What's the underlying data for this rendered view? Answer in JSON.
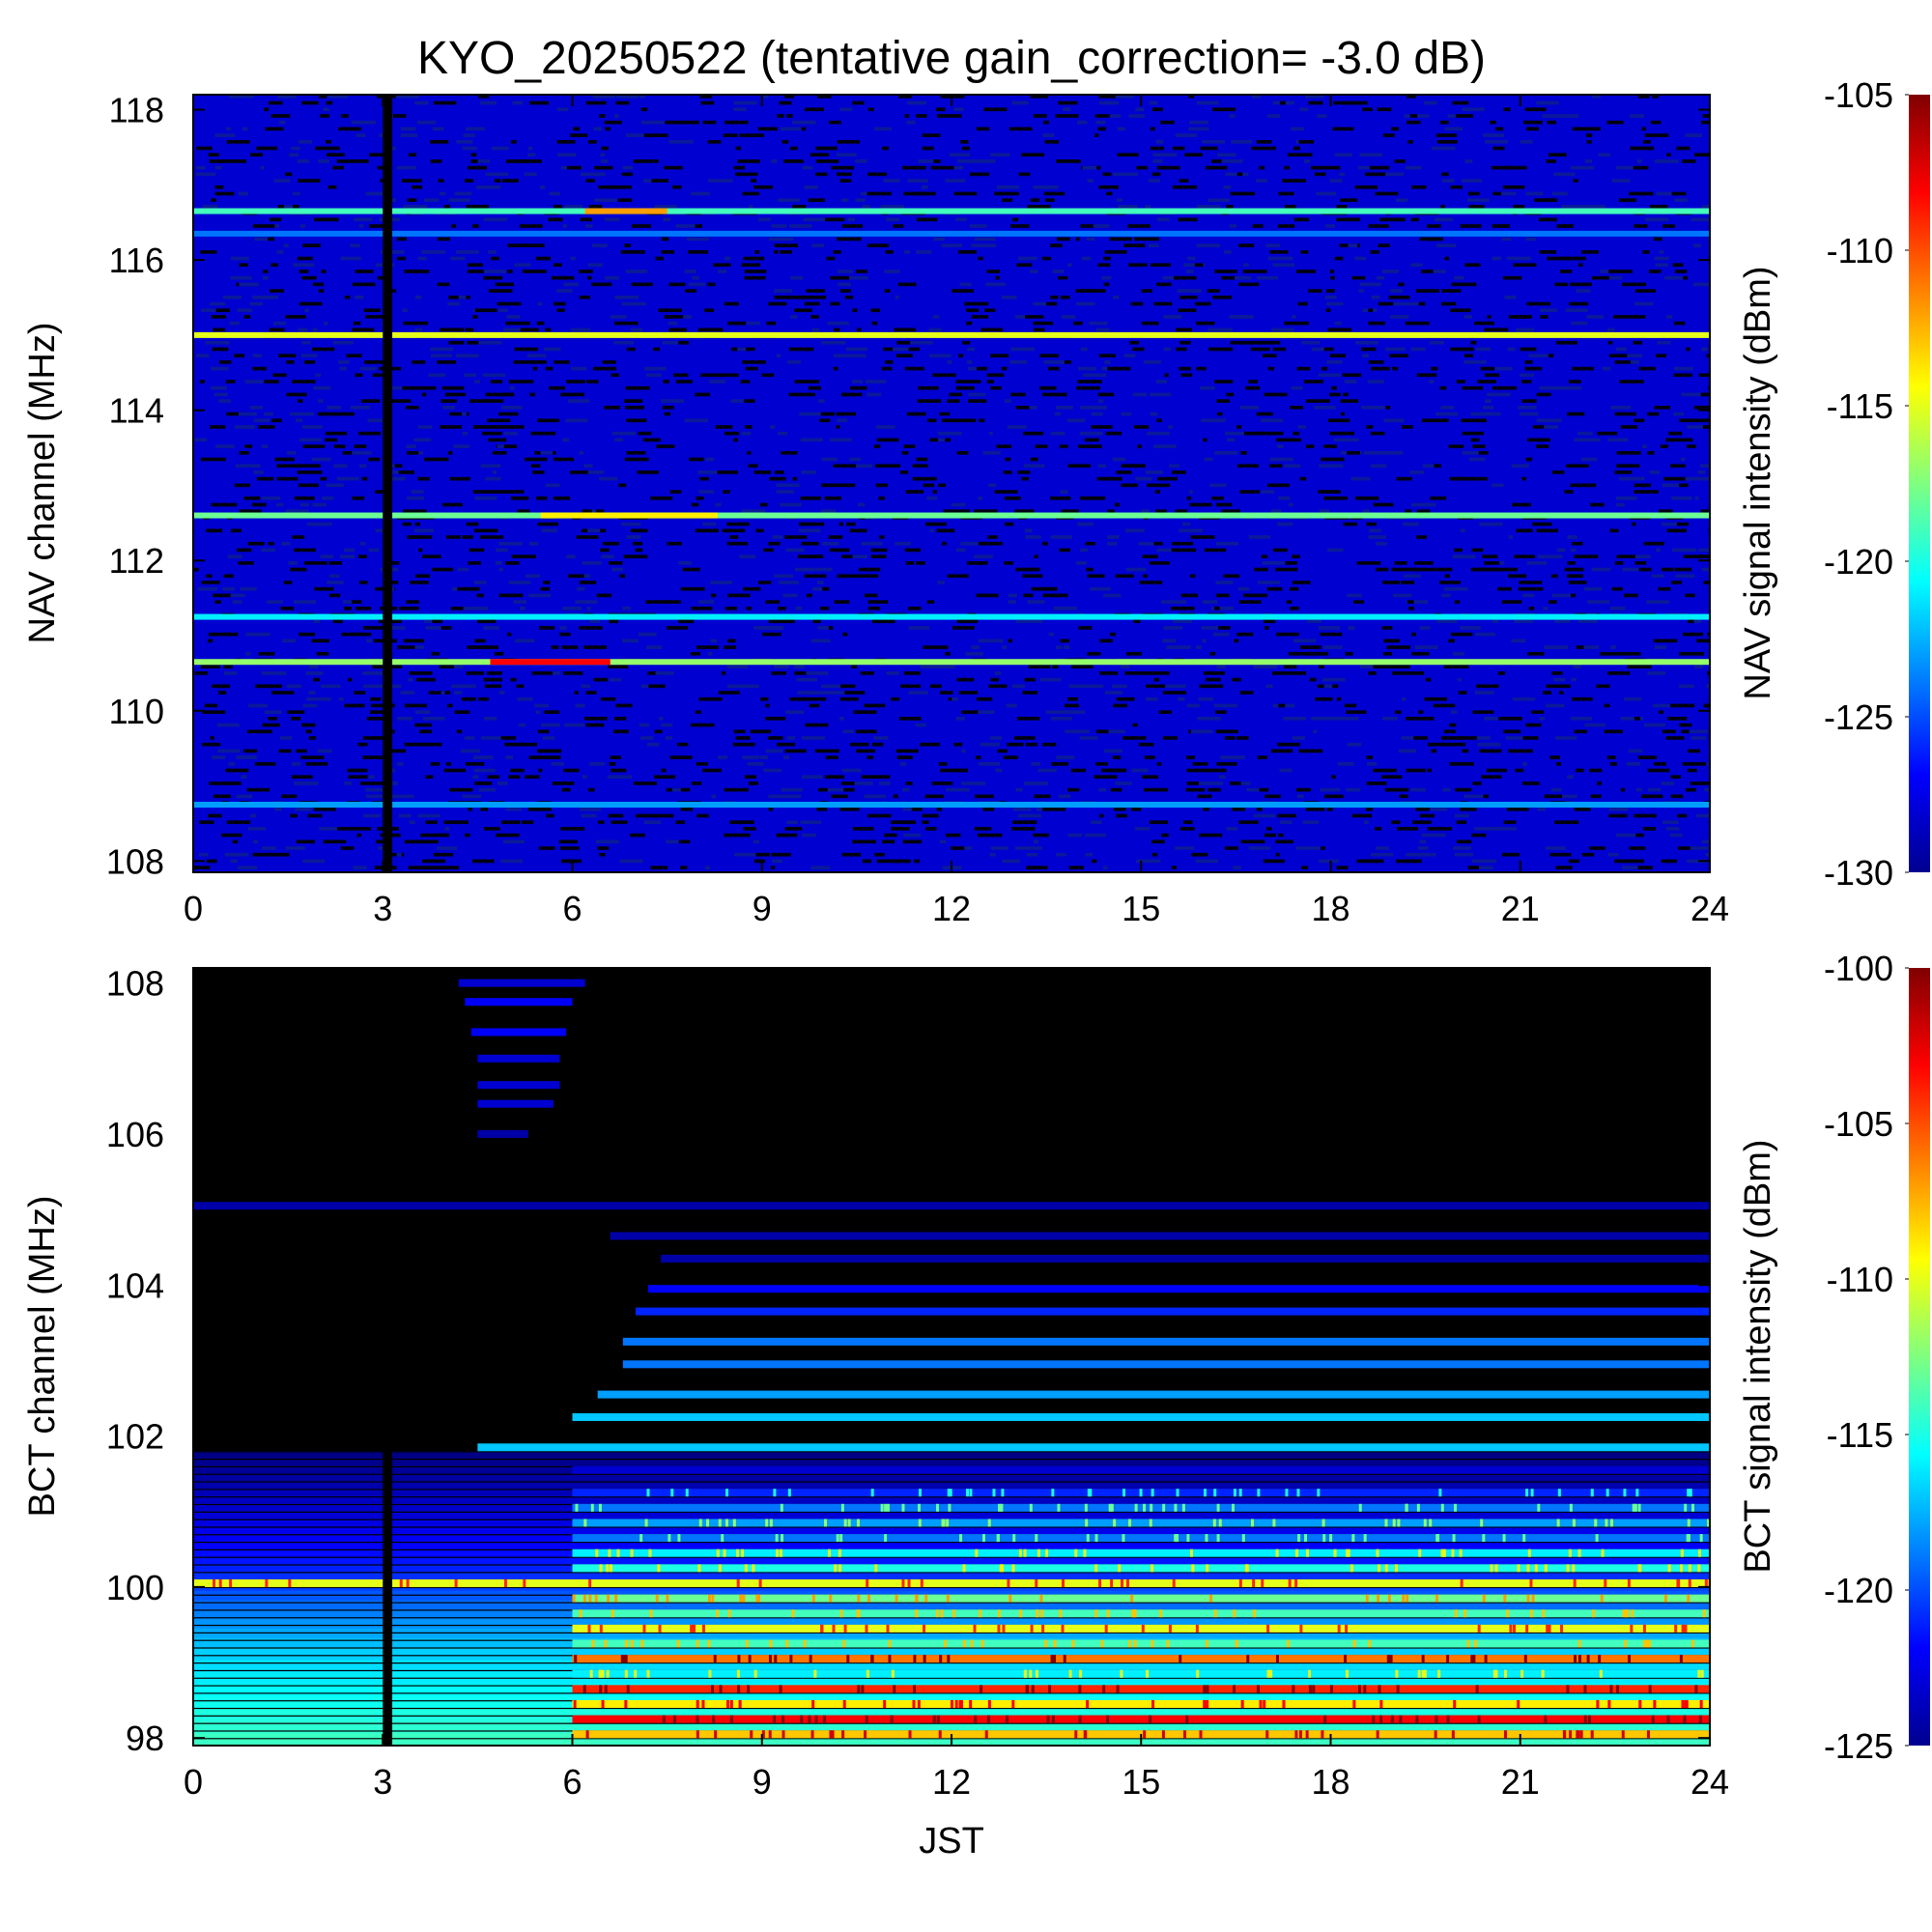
{
  "figure": {
    "title": "KYO_20250522 (tentative gain_correction= -3.0 dB)",
    "xlabel": "JST"
  },
  "chart_data": [
    {
      "type": "heatmap",
      "panel": "top",
      "xlabel": "",
      "ylabel": "NAV channel (MHz)",
      "colorbar_label": "NAV signal intensity (dBm)",
      "x_ticks": [
        "0",
        "3",
        "6",
        "9",
        "12",
        "15",
        "18",
        "21",
        "24"
      ],
      "y_ticks": [
        "108",
        "110",
        "112",
        "114",
        "116",
        "118"
      ],
      "colorbar_ticks": [
        "-130",
        "-125",
        "-120",
        "-115",
        "-110",
        "-105"
      ],
      "xlim": [
        0,
        24
      ],
      "ylim": [
        107.85,
        118.2
      ],
      "clim": [
        -130,
        -105
      ],
      "colormap": "jet",
      "background_dbm": -128,
      "dropout": {
        "x_start": 3.0,
        "x_end": 3.15
      },
      "bright_lines": [
        {
          "freq": 116.65,
          "dbm": -119,
          "peak": {
            "x_start": 6.2,
            "x_end": 7.5,
            "dbm": -112
          }
        },
        {
          "freq": 116.35,
          "dbm": -124
        },
        {
          "freq": 115.0,
          "dbm": -115
        },
        {
          "freq": 112.6,
          "dbm": -118,
          "peak": {
            "x_start": 5.5,
            "x_end": 8.3,
            "dbm": -114
          }
        },
        {
          "freq": 111.25,
          "dbm": -121
        },
        {
          "freq": 110.65,
          "dbm": -117,
          "peak": {
            "x_start": 4.7,
            "x_end": 6.6,
            "dbm": -108
          }
        },
        {
          "freq": 108.75,
          "dbm": -123
        }
      ]
    },
    {
      "type": "heatmap",
      "panel": "bottom",
      "xlabel": "JST",
      "ylabel": "BCT channel (MHz)",
      "colorbar_label": "BCT signal intensity (dBm)",
      "x_ticks": [
        "0",
        "3",
        "6",
        "9",
        "12",
        "15",
        "18",
        "21",
        "24"
      ],
      "y_ticks": [
        "98",
        "100",
        "102",
        "104",
        "106",
        "108"
      ],
      "colorbar_ticks": [
        "-125",
        "-120",
        "-115",
        "-110",
        "-105",
        "-100"
      ],
      "xlim": [
        0,
        24
      ],
      "ylim": [
        97.9,
        108.2
      ],
      "clim": [
        -125,
        -100
      ],
      "colormap": "jet",
      "dropout": {
        "x_start": 3.0,
        "x_end": 3.15
      },
      "bands": [
        {
          "freq": 108.0,
          "x_start": 4.2,
          "x_end": 6.2,
          "dbm": -123
        },
        {
          "freq": 107.75,
          "x_start": 4.3,
          "x_end": 6.0,
          "dbm": -122
        },
        {
          "freq": 107.35,
          "x_start": 4.4,
          "x_end": 5.9,
          "dbm": -122
        },
        {
          "freq": 107.0,
          "x_start": 4.5,
          "x_end": 5.8,
          "dbm": -123
        },
        {
          "freq": 106.65,
          "x_start": 4.5,
          "x_end": 5.8,
          "dbm": -123
        },
        {
          "freq": 106.4,
          "x_start": 4.5,
          "x_end": 5.7,
          "dbm": -123
        },
        {
          "freq": 106.0,
          "x_start": 4.5,
          "x_end": 5.3,
          "dbm": -124
        },
        {
          "freq": 105.05,
          "x_start": 0,
          "x_end": 24,
          "dbm": -124
        },
        {
          "freq": 104.65,
          "x_start": 6.6,
          "x_end": 24,
          "dbm": -124
        },
        {
          "freq": 104.35,
          "x_start": 7.4,
          "x_end": 24,
          "dbm": -124
        },
        {
          "freq": 103.95,
          "x_start": 7.2,
          "x_end": 24,
          "dbm": -122
        },
        {
          "freq": 103.65,
          "x_start": 7.0,
          "x_end": 24,
          "dbm": -121
        },
        {
          "freq": 103.25,
          "x_start": 6.8,
          "x_end": 24,
          "dbm": -119
        },
        {
          "freq": 102.95,
          "x_start": 6.8,
          "x_end": 24,
          "dbm": -119
        },
        {
          "freq": 102.55,
          "x_start": 6.4,
          "x_end": 24,
          "dbm": -118
        },
        {
          "freq": 102.25,
          "x_start": 6.0,
          "x_end": 24,
          "dbm": -117
        },
        {
          "freq": 101.85,
          "x_start": 4.5,
          "x_end": 24,
          "dbm": -117
        },
        {
          "freq": 101.55,
          "x_start": 6.0,
          "x_end": 24,
          "dbm": -123
        },
        {
          "freq": 101.25,
          "x_start": 6.0,
          "x_end": 24,
          "dbm": -121
        },
        {
          "freq": 101.05,
          "x_start": 6.0,
          "x_end": 24,
          "dbm": -119
        },
        {
          "freq": 100.85,
          "x_start": 6.0,
          "x_end": 24,
          "dbm": -118
        },
        {
          "freq": 100.65,
          "x_start": 6.0,
          "x_end": 24,
          "dbm": -119
        },
        {
          "freq": 100.45,
          "x_start": 6.0,
          "x_end": 24,
          "dbm": -116
        },
        {
          "freq": 100.25,
          "x_start": 6.0,
          "x_end": 24,
          "dbm": -115
        },
        {
          "freq": 100.05,
          "x_start": 0,
          "x_end": 24,
          "dbm": -110
        },
        {
          "freq": 99.85,
          "x_start": 6.0,
          "x_end": 24,
          "dbm": -113
        },
        {
          "freq": 99.65,
          "x_start": 6.0,
          "x_end": 24,
          "dbm": -114
        },
        {
          "freq": 99.45,
          "x_start": 6.0,
          "x_end": 24,
          "dbm": -110
        },
        {
          "freq": 99.25,
          "x_start": 6.0,
          "x_end": 24,
          "dbm": -114
        },
        {
          "freq": 99.05,
          "x_start": 6.0,
          "x_end": 24,
          "dbm": -106
        },
        {
          "freq": 98.85,
          "x_start": 6.0,
          "x_end": 24,
          "dbm": -116
        },
        {
          "freq": 98.65,
          "x_start": 6.0,
          "x_end": 24,
          "dbm": -104
        },
        {
          "freq": 98.45,
          "x_start": 6.0,
          "x_end": 24,
          "dbm": -109
        },
        {
          "freq": 98.25,
          "x_start": 6.0,
          "x_end": 24,
          "dbm": -103
        },
        {
          "freq": 98.05,
          "x_start": 6.0,
          "x_end": 24,
          "dbm": -108
        }
      ],
      "low_band_gradient": [
        {
          "freq": 101.8,
          "dbm": -125
        },
        {
          "freq": 101.0,
          "dbm": -123
        },
        {
          "freq": 100.2,
          "dbm": -121
        },
        {
          "freq": 99.2,
          "dbm": -117
        },
        {
          "freq": 97.9,
          "dbm": -114
        }
      ]
    }
  ]
}
